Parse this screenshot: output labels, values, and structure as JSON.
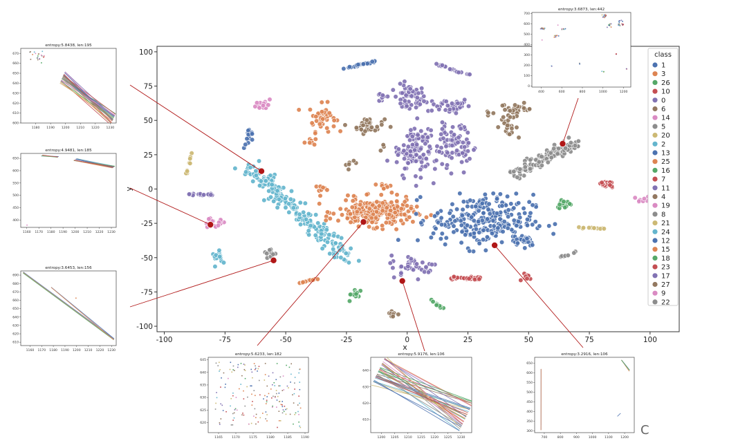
{
  "chart_data": {
    "main": {
      "type": "scatter",
      "xlabel": "x",
      "ylabel": "y",
      "xlim": [
        -103,
        112
      ],
      "ylim": [
        -104,
        104
      ],
      "xticks": [
        "-100",
        "-75",
        "-50",
        "-25",
        "0",
        "25",
        "50",
        "75",
        "100"
      ],
      "yticks": [
        "100",
        "75",
        "50",
        "25",
        "0",
        "-25",
        "-50",
        "-75",
        "-100"
      ],
      "legend": {
        "title": "class",
        "placement": "right",
        "entries": [
          {
            "label": "1",
            "color": "#4c72b0"
          },
          {
            "label": "3",
            "color": "#dd8452"
          },
          {
            "label": "26",
            "color": "#55a868"
          },
          {
            "label": "10",
            "color": "#c44e52"
          },
          {
            "label": "0",
            "color": "#8172b3"
          },
          {
            "label": "6",
            "color": "#937860"
          },
          {
            "label": "14",
            "color": "#da8bc3"
          },
          {
            "label": "5",
            "color": "#8c8c8c"
          },
          {
            "label": "20",
            "color": "#ccb974"
          },
          {
            "label": "2",
            "color": "#64b5cd"
          },
          {
            "label": "13",
            "color": "#4c72b0"
          },
          {
            "label": "25",
            "color": "#dd8452"
          },
          {
            "label": "16",
            "color": "#55a868"
          },
          {
            "label": "7",
            "color": "#c44e52"
          },
          {
            "label": "11",
            "color": "#8172b3"
          },
          {
            "label": "4",
            "color": "#937860"
          },
          {
            "label": "19",
            "color": "#da8bc3"
          },
          {
            "label": "8",
            "color": "#8c8c8c"
          },
          {
            "label": "21",
            "color": "#ccb974"
          },
          {
            "label": "24",
            "color": "#64b5cd"
          },
          {
            "label": "12",
            "color": "#4c72b0"
          },
          {
            "label": "15",
            "color": "#dd8452"
          },
          {
            "label": "18",
            "color": "#55a868"
          },
          {
            "label": "23",
            "color": "#c44e52"
          },
          {
            "label": "17",
            "color": "#8172b3"
          },
          {
            "label": "27",
            "color": "#937860"
          },
          {
            "label": "9",
            "color": "#da8bc3"
          },
          {
            "label": "22",
            "color": "#8c8c8c"
          }
        ]
      },
      "clusters": [
        {
          "color": "#4c72b0",
          "shape": "line",
          "x0": -28,
          "y0": 87,
          "x1": -11,
          "y1": 94,
          "n": 22
        },
        {
          "color": "#8172b3",
          "shape": "line",
          "x0": 10,
          "y0": 92,
          "x1": 26,
          "y1": 83,
          "n": 18
        },
        {
          "color": "#8172b3",
          "shape": "blob",
          "cx": 1,
          "cy": 66,
          "rx": 6,
          "ry": 9,
          "n": 55
        },
        {
          "color": "#8172b3",
          "shape": "blob",
          "cx": 17,
          "cy": 61,
          "rx": 8,
          "ry": 5,
          "n": 40
        },
        {
          "color": "#8172b3",
          "shape": "blob",
          "cx": -10,
          "cy": 67,
          "rx": 3,
          "ry": 4,
          "n": 10
        },
        {
          "color": "#da8bc3",
          "shape": "blob",
          "cx": -59,
          "cy": 62,
          "rx": 3,
          "ry": 4,
          "n": 14
        },
        {
          "color": "#dd8452",
          "shape": "blob",
          "cx": -35,
          "cy": 52,
          "rx": 5,
          "ry": 9,
          "n": 45
        },
        {
          "color": "#dd8452",
          "shape": "blob",
          "cx": -40,
          "cy": 35,
          "rx": 2,
          "ry": 3,
          "n": 8
        },
        {
          "color": "#937860",
          "shape": "blob",
          "cx": -16,
          "cy": 46,
          "rx": 6,
          "ry": 5,
          "n": 35
        },
        {
          "color": "#937860",
          "shape": "blob",
          "cx": -23,
          "cy": 18,
          "rx": 2,
          "ry": 2,
          "n": 6
        },
        {
          "color": "#937860",
          "shape": "blob",
          "cx": 45,
          "cy": 58,
          "rx": 6,
          "ry": 4,
          "n": 30
        },
        {
          "color": "#937860",
          "shape": "blob",
          "cx": 41,
          "cy": 46,
          "rx": 4,
          "ry": 6,
          "n": 22
        },
        {
          "color": "#937860",
          "shape": "blob",
          "cx": 34,
          "cy": 55,
          "rx": 1.5,
          "ry": 2,
          "n": 4
        },
        {
          "color": "#937860",
          "shape": "blob",
          "cx": -10,
          "cy": 30,
          "rx": 1.2,
          "ry": 2,
          "n": 4
        },
        {
          "color": "#4c72b0",
          "shape": "blob",
          "cx": -65,
          "cy": 37,
          "rx": 2,
          "ry": 7,
          "n": 14
        },
        {
          "color": "#ccb974",
          "shape": "line",
          "x0": -91,
          "y0": 11,
          "x1": -88,
          "y1": 27,
          "n": 10
        },
        {
          "color": "#8172b3",
          "shape": "blob",
          "cx": 3,
          "cy": 29,
          "rx": 8,
          "ry": 17,
          "n": 120
        },
        {
          "color": "#8172b3",
          "shape": "blob",
          "cx": 20,
          "cy": 33,
          "rx": 6,
          "ry": 17,
          "n": 90
        },
        {
          "color": "#8c8c8c",
          "shape": "line",
          "x0": 44,
          "y0": 11,
          "x1": 70,
          "y1": 34,
          "n": 140,
          "spread": 5
        },
        {
          "color": "#c44e52",
          "shape": "blob",
          "cx": 82,
          "cy": 3,
          "rx": 4,
          "ry": 3,
          "n": 18
        },
        {
          "color": "#da8bc3",
          "shape": "blob",
          "cx": 97,
          "cy": -9,
          "rx": 3,
          "ry": 3,
          "n": 10
        },
        {
          "color": "#55a868",
          "shape": "blob",
          "cx": 64,
          "cy": -12,
          "rx": 3.5,
          "ry": 3,
          "n": 16
        },
        {
          "color": "#ccb974",
          "shape": "line",
          "x0": 71,
          "y0": -28,
          "x1": 81,
          "y1": -29,
          "n": 12
        },
        {
          "color": "#8c8c8c",
          "shape": "line",
          "x0": 63,
          "y0": -50,
          "x1": 70,
          "y1": -45,
          "n": 8
        },
        {
          "color": "#8172b3",
          "shape": "line",
          "x0": -93,
          "y0": -4,
          "x1": -80,
          "y1": -4,
          "n": 18
        },
        {
          "color": "#64b5cd",
          "shape": "line",
          "x0": -64,
          "y0": 15,
          "x1": -25,
          "y1": -50,
          "n": 220,
          "spread": 7
        },
        {
          "color": "#da8bc3",
          "shape": "blob",
          "cx": -80,
          "cy": -25,
          "rx": 5,
          "ry": 3,
          "n": 18
        },
        {
          "color": "#64b5cd",
          "shape": "blob",
          "cx": -77,
          "cy": -50,
          "rx": 3,
          "ry": 4,
          "n": 14
        },
        {
          "color": "#8c8c8c",
          "shape": "blob",
          "cx": -57,
          "cy": -47,
          "rx": 2.5,
          "ry": 5,
          "n": 10
        },
        {
          "color": "#dd8452",
          "shape": "line",
          "x0": -45,
          "y0": -69,
          "x1": -36,
          "y1": -65,
          "n": 12
        },
        {
          "color": "#dd8452",
          "shape": "blob",
          "cx": -36,
          "cy": 0,
          "rx": 2,
          "ry": 4,
          "n": 10
        },
        {
          "color": "#dd8452",
          "shape": "blob",
          "cx": -13,
          "cy": -17,
          "rx": 14,
          "ry": 9,
          "n": 260
        },
        {
          "color": "#dd8452",
          "shape": "blob",
          "cx": -10,
          "cy": 2,
          "rx": 3,
          "ry": 2,
          "n": 8
        },
        {
          "color": "#4c72b0",
          "shape": "blob",
          "cx": 31,
          "cy": -23,
          "rx": 19,
          "ry": 17,
          "n": 260
        },
        {
          "color": "#4c72b0",
          "shape": "blob",
          "cx": 47,
          "cy": -37,
          "rx": 6,
          "ry": 4,
          "n": 30
        },
        {
          "color": "#8172b3",
          "shape": "blob",
          "cx": 3,
          "cy": -56,
          "rx": 9,
          "ry": 7,
          "n": 40
        },
        {
          "color": "#55a868",
          "shape": "blob",
          "cx": -21,
          "cy": -77,
          "rx": 3,
          "ry": 4,
          "n": 12
        },
        {
          "color": "#937860",
          "shape": "blob",
          "cx": -6,
          "cy": -91,
          "rx": 2,
          "ry": 3,
          "n": 8
        },
        {
          "color": "#55a868",
          "shape": "line",
          "x0": 9,
          "y0": -81,
          "x1": 17,
          "y1": -89,
          "n": 10
        },
        {
          "color": "#c44e52",
          "shape": "line",
          "x0": 17,
          "y0": -65,
          "x1": 30,
          "y1": -65,
          "n": 24,
          "spread": 2
        },
        {
          "color": "#c44e52",
          "shape": "blob",
          "cx": 49,
          "cy": -64,
          "rx": 2.5,
          "ry": 3,
          "n": 8
        }
      ],
      "highlights": [
        {
          "x": -60,
          "y": 13
        },
        {
          "x": -81,
          "y": -26
        },
        {
          "x": -55,
          "y": -52
        },
        {
          "x": -18,
          "y": -24
        },
        {
          "x": -2,
          "y": -67
        },
        {
          "x": 36,
          "y": -41
        },
        {
          "x": 64,
          "y": 33
        }
      ]
    },
    "insets": [
      {
        "title": "entropy:5.8438, len:195",
        "type": "line",
        "xticks": [
          "1180",
          "1190",
          "1200",
          "1210",
          "1220",
          "1230"
        ],
        "yticks": [
          "670",
          "660",
          "650",
          "640",
          "630",
          "620",
          "610",
          "600"
        ],
        "xlim": [
          1170,
          1234
        ],
        "ylim": [
          600,
          675
        ],
        "bundles": [
          {
            "x0": 1198,
            "y0": 646,
            "x1": 1232,
            "y1": 604,
            "n": 28,
            "spread": 6
          }
        ],
        "scatter": [
          {
            "x0": 1176,
            "x1": 1186,
            "y0": 660,
            "y1": 672,
            "n": 22
          }
        ]
      },
      {
        "title": "entropy:4.9481, len:185",
        "type": "line",
        "xticks": [
          "1160",
          "1170",
          "1180",
          "1190",
          "1200",
          "1210",
          "1220",
          "1230"
        ],
        "yticks": [
          "650",
          "600",
          "550",
          "500",
          "450",
          "400"
        ],
        "xlim": [
          1155,
          1234
        ],
        "ylim": [
          370,
          670
        ],
        "bundles": [
          {
            "x0": 1200,
            "y0": 645,
            "x1": 1232,
            "y1": 615,
            "n": 14,
            "spread": 4
          },
          {
            "x0": 1172,
            "y0": 660,
            "x1": 1186,
            "y1": 656,
            "n": 4,
            "spread": 3
          }
        ],
        "scatter": [
          {
            "x0": 1160,
            "x1": 1161,
            "y0": 379,
            "y1": 381,
            "n": 1
          }
        ]
      },
      {
        "title": "entropy:3.6453, len:156",
        "type": "line",
        "xticks": [
          "1160",
          "1170",
          "1180",
          "1190",
          "1200",
          "1210",
          "1220",
          "1230"
        ],
        "yticks": [
          "690",
          "680",
          "670",
          "660",
          "650",
          "640",
          "630",
          "620",
          "610"
        ],
        "xlim": [
          1152,
          1234
        ],
        "ylim": [
          606,
          695
        ],
        "bundles": [
          {
            "x0": 1154,
            "y0": 693,
            "x1": 1232,
            "y1": 613,
            "n": 3,
            "spread": 1
          },
          {
            "x0": 1178,
            "y0": 675,
            "x1": 1232,
            "y1": 614,
            "n": 2,
            "spread": 1
          }
        ],
        "scatter": [
          {
            "x0": 1199,
            "x1": 1200,
            "y0": 662,
            "y1": 663,
            "n": 1
          }
        ]
      },
      {
        "title": "entropy:5.6233, len:182",
        "type": "scatter",
        "xticks": [
          "1165",
          "1170",
          "1175",
          "1180",
          "1185",
          "1190"
        ],
        "yticks": [
          "645",
          "640",
          "635",
          "630",
          "625",
          "620"
        ],
        "xlim": [
          1162,
          1191
        ],
        "ylim": [
          616,
          646
        ],
        "bundles": [],
        "scatter": [
          {
            "x0": 1164,
            "x1": 1189,
            "y0": 618,
            "y1": 644,
            "n": 180
          }
        ]
      },
      {
        "title": "entropy:5.9176, len:106",
        "type": "line",
        "xticks": [
          "1200",
          "1205",
          "1210",
          "1215",
          "1220",
          "1225",
          "1230"
        ],
        "yticks": [
          "640",
          "630",
          "620",
          "610"
        ],
        "xlim": [
          1196,
          1234
        ],
        "ylim": [
          602,
          648
        ],
        "bundles": [
          {
            "x0": 1199,
            "y0": 640,
            "x1": 1232,
            "y1": 612,
            "n": 34,
            "spread": 9
          }
        ],
        "scatter": []
      },
      {
        "title": "entropy:3.2916, len:106",
        "type": "line",
        "xticks": [
          "700",
          "800",
          "900",
          "1000",
          "1100",
          "1200"
        ],
        "yticks": [
          "650",
          "600",
          "550",
          "500",
          "450",
          "400",
          "350",
          "300"
        ],
        "xlim": [
          640,
          1260
        ],
        "ylim": [
          290,
          680
        ],
        "bundles": [
          {
            "x0": 680,
            "y0": 620,
            "x1": 680,
            "y1": 305,
            "n": 2,
            "spread": 3
          },
          {
            "x0": 1180,
            "y0": 665,
            "x1": 1230,
            "y1": 610,
            "n": 3,
            "spread": 4
          },
          {
            "x0": 1155,
            "y0": 375,
            "x1": 1175,
            "y1": 390,
            "n": 1,
            "spread": 1
          }
        ],
        "scatter": []
      },
      {
        "title": "entropy:3.6873, len:442",
        "type": "scatter",
        "xticks": [
          "400",
          "600",
          "800",
          "1000",
          "1200"
        ],
        "yticks": [
          "700",
          "600",
          "500",
          "400",
          "300",
          "200",
          "100",
          "0"
        ],
        "xlim": [
          310,
          1270
        ],
        "ylim": [
          -10,
          710
        ],
        "bundles": [],
        "scatter": [
          {
            "x0": 390,
            "x1": 440,
            "y0": 545,
            "y1": 560,
            "n": 10
          },
          {
            "x0": 520,
            "x1": 570,
            "y0": 470,
            "y1": 495,
            "n": 8
          },
          {
            "x0": 600,
            "x1": 640,
            "y0": 545,
            "y1": 555,
            "n": 6
          },
          {
            "x0": 990,
            "x1": 1030,
            "y0": 660,
            "y1": 690,
            "n": 14
          },
          {
            "x0": 1040,
            "x1": 1080,
            "y0": 560,
            "y1": 600,
            "n": 10
          },
          {
            "x0": 1150,
            "x1": 1200,
            "y0": 580,
            "y1": 640,
            "n": 16
          },
          {
            "x0": 1120,
            "x1": 1140,
            "y0": 300,
            "y1": 320,
            "n": 3
          },
          {
            "x0": 990,
            "x1": 1010,
            "y0": 130,
            "y1": 150,
            "n": 3
          },
          {
            "x0": 770,
            "x1": 780,
            "y0": 210,
            "y1": 220,
            "n": 2
          },
          {
            "x0": 500,
            "x1": 505,
            "y0": 185,
            "y1": 195,
            "n": 2
          },
          {
            "x0": 1220,
            "x1": 1240,
            "y0": 160,
            "y1": 170,
            "n": 2
          },
          {
            "x0": 400,
            "x1": 410,
            "y0": 440,
            "y1": 445,
            "n": 1
          },
          {
            "x0": 560,
            "x1": 565,
            "y0": 585,
            "y1": 590,
            "n": 1
          }
        ]
      }
    ]
  },
  "figure": {
    "panel_label": "C"
  }
}
